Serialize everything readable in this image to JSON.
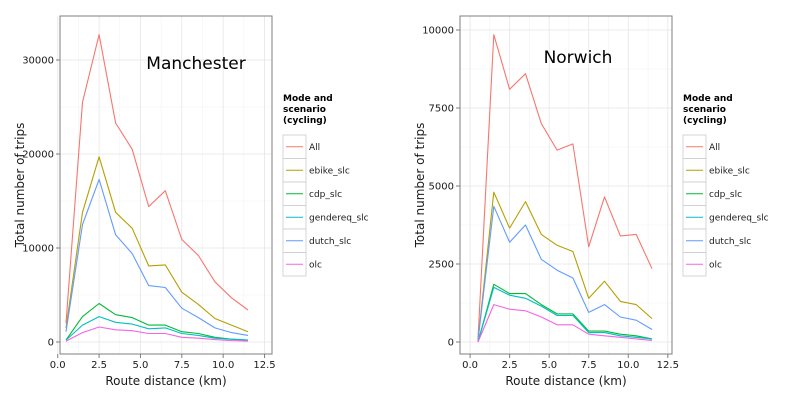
{
  "chart_data": [
    {
      "type": "line",
      "title": "Manchester",
      "xlabel": "Route distance (km)",
      "ylabel": "Total number of trips",
      "xlim": [
        0,
        12.5
      ],
      "ylim": [
        0,
        34000
      ],
      "x_ticks": [
        "0.0",
        "2.5",
        "5.0",
        "7.5",
        "10.0",
        "12.5"
      ],
      "y_ticks": [
        "0",
        "10000",
        "20000",
        "30000"
      ],
      "x": [
        0.5,
        1.5,
        2.5,
        3.5,
        4.5,
        5.5,
        6.5,
        7.5,
        8.5,
        9.5,
        10.5,
        11.5
      ],
      "legend_title": "Mode and scenario (cycling)",
      "legend_title_lines": [
        "Mode and",
        "scenario",
        "(cycling)"
      ],
      "legend_position": "right",
      "grid": true,
      "series": [
        {
          "name": "All",
          "color": "#F8766D",
          "values": [
            2000,
            25500,
            32700,
            23300,
            20500,
            14400,
            16100,
            10900,
            9200,
            6400,
            4700,
            3400
          ]
        },
        {
          "name": "ebike_slc",
          "color": "#B79F00",
          "values": [
            1500,
            13800,
            19700,
            13800,
            12100,
            8100,
            8200,
            5300,
            4000,
            2500,
            1800,
            1100
          ]
        },
        {
          "name": "cdp_slc",
          "color": "#00BA38",
          "values": [
            200,
            2700,
            4100,
            2900,
            2600,
            1800,
            1800,
            1100,
            900,
            500,
            300,
            200
          ]
        },
        {
          "name": "gendereq_slc",
          "color": "#00BFC4",
          "values": [
            200,
            1800,
            2700,
            2100,
            1900,
            1400,
            1500,
            900,
            700,
            400,
            300,
            200
          ]
        },
        {
          "name": "dutch_slc",
          "color": "#619CFF",
          "values": [
            1100,
            12500,
            17300,
            11400,
            9400,
            6000,
            5800,
            3600,
            2600,
            1500,
            1000,
            700
          ]
        },
        {
          "name": "olc",
          "color": "#F564E3",
          "values": [
            100,
            1000,
            1600,
            1300,
            1200,
            900,
            900,
            500,
            400,
            250,
            150,
            100
          ]
        }
      ]
    },
    {
      "type": "line",
      "title": "Norwich",
      "xlabel": "Route distance (km)",
      "ylabel": "Total number of trips",
      "xlim": [
        0,
        12.5
      ],
      "ylim": [
        0,
        10400
      ],
      "x_ticks": [
        "0.0",
        "2.5",
        "5.0",
        "7.5",
        "10.0",
        "12.5"
      ],
      "y_ticks": [
        "0",
        "2500",
        "5000",
        "7500",
        "10000"
      ],
      "x": [
        0.5,
        1.5,
        2.5,
        3.5,
        4.5,
        5.5,
        6.5,
        7.5,
        8.5,
        9.5,
        10.5,
        11.5
      ],
      "legend_title": "Mode and scenario (cycling)",
      "legend_title_lines": [
        "Mode and",
        "scenario",
        "(cycling)"
      ],
      "legend_position": "right",
      "grid": true,
      "series": [
        {
          "name": "All",
          "color": "#F8766D",
          "values": [
            100,
            9850,
            8100,
            8600,
            7000,
            6150,
            6350,
            3050,
            4650,
            3400,
            3450,
            2350
          ]
        },
        {
          "name": "ebike_slc",
          "color": "#B79F00",
          "values": [
            50,
            4800,
            3650,
            4500,
            3450,
            3100,
            2900,
            1400,
            1950,
            1300,
            1200,
            750
          ]
        },
        {
          "name": "cdp_slc",
          "color": "#00BA38",
          "values": [
            0,
            1850,
            1550,
            1550,
            1200,
            900,
            900,
            350,
            350,
            250,
            200,
            100
          ]
        },
        {
          "name": "gendereq_slc",
          "color": "#00BFC4",
          "values": [
            0,
            1750,
            1500,
            1400,
            1150,
            850,
            850,
            300,
            300,
            200,
            150,
            100
          ]
        },
        {
          "name": "dutch_slc",
          "color": "#619CFF",
          "values": [
            50,
            4350,
            3200,
            3750,
            2650,
            2300,
            2050,
            950,
            1200,
            800,
            700,
            400
          ]
        },
        {
          "name": "olc",
          "color": "#F564E3",
          "values": [
            0,
            1200,
            1050,
            1000,
            800,
            550,
            550,
            250,
            200,
            150,
            100,
            50
          ]
        }
      ]
    }
  ]
}
